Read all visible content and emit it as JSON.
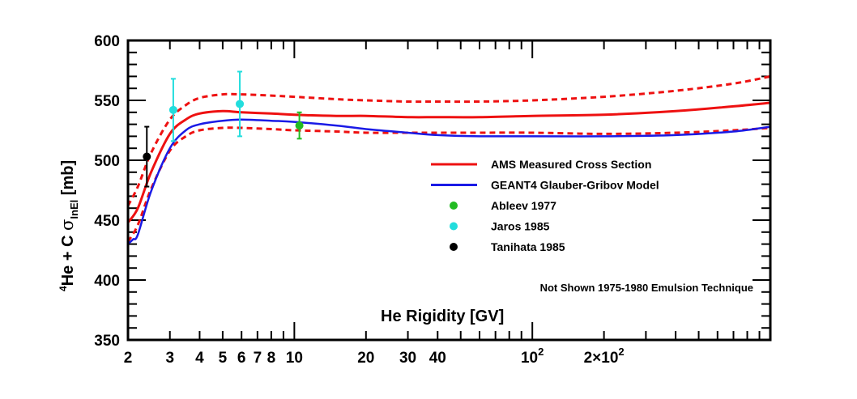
{
  "chart_data": {
    "type": "line",
    "xlabel": "He Rigidity [GV]",
    "ylabel": {
      "sup": "4",
      "main": "He + C  ",
      "sigma": "σ",
      "sub": "InEl",
      "unit": " [mb]"
    },
    "x_scale": "log",
    "xlim": [
      2,
      1000
    ],
    "ylim": [
      350,
      600
    ],
    "y_ticks": [
      350,
      400,
      450,
      500,
      550,
      600
    ],
    "x_tick_labels": [
      {
        "x": 2,
        "text": "2"
      },
      {
        "x": 3,
        "text": "3"
      },
      {
        "x": 4,
        "text": "4"
      },
      {
        "x": 5,
        "text": "5"
      },
      {
        "x": 6,
        "text": "6"
      },
      {
        "x": 7,
        "text": "7"
      },
      {
        "x": 8,
        "text": "8"
      },
      {
        "x": 10,
        "text": "10"
      },
      {
        "x": 20,
        "text": "20"
      },
      {
        "x": 30,
        "text": "30"
      },
      {
        "x": 40,
        "text": "40"
      },
      {
        "x": 100,
        "text": "10",
        "sup": "2"
      },
      {
        "x": 200,
        "text": "2×10",
        "sup": "2"
      }
    ],
    "series": [
      {
        "name": "AMS Measured Cross Section",
        "color": "#ee1111",
        "style": "solid",
        "x": [
          2.0,
          2.2,
          2.5,
          3.0,
          3.5,
          4.0,
          5.0,
          6.0,
          8.0,
          10,
          15,
          20,
          30,
          40,
          60,
          100,
          200,
          400,
          700,
          1000
        ],
        "y": [
          448,
          460,
          490,
          522,
          534,
          539,
          541,
          540,
          539,
          538,
          537,
          537,
          536,
          536,
          536,
          537,
          538,
          541,
          545,
          548
        ]
      },
      {
        "name": "AMS upper band",
        "color": "#ee1111",
        "style": "dashed",
        "x": [
          2.0,
          2.2,
          2.5,
          3.0,
          3.5,
          4.0,
          5.0,
          6.0,
          8.0,
          10,
          15,
          20,
          30,
          40,
          60,
          100,
          200,
          400,
          700,
          1000
        ],
        "y": [
          462,
          478,
          506,
          534,
          546,
          552,
          555,
          555,
          554,
          553,
          551,
          550,
          549,
          549,
          549,
          550,
          553,
          558,
          564,
          570
        ]
      },
      {
        "name": "AMS lower band",
        "color": "#ee1111",
        "style": "dashed",
        "x": [
          2.0,
          2.2,
          2.5,
          3.0,
          3.5,
          4.0,
          5.0,
          6.0,
          8.0,
          10,
          15,
          20,
          30,
          40,
          60,
          100,
          200,
          400,
          700,
          1000
        ],
        "y": [
          432,
          446,
          476,
          508,
          520,
          525,
          527,
          527,
          526,
          525,
          524,
          523,
          523,
          523,
          523,
          523,
          522,
          523,
          525,
          527
        ]
      },
      {
        "name": "GEANT4 Glauber-Gribov Model",
        "color": "#1a1ae6",
        "style": "solid",
        "x": [
          2.0,
          2.1,
          2.2,
          2.5,
          3.0,
          3.5,
          4.0,
          5.0,
          6.0,
          8.0,
          10,
          15,
          20,
          30,
          40,
          60,
          100,
          200,
          400,
          700,
          1000
        ],
        "y": [
          430,
          434,
          438,
          474,
          510,
          525,
          530,
          533,
          534,
          533,
          532,
          529,
          526,
          523,
          521,
          520,
          520,
          520,
          521,
          524,
          528
        ]
      }
    ],
    "points": [
      {
        "name": "Ableev 1977",
        "color": "#22bb22",
        "x": 10.5,
        "y": 529,
        "err": 11
      },
      {
        "name": "Jaros 1985",
        "color": "#22dddd",
        "x": 3.1,
        "y": 542,
        "err": 26
      },
      {
        "name": "Jaros 1985",
        "color": "#22dddd",
        "x": 5.9,
        "y": 547,
        "err": 27
      },
      {
        "name": "Tanihata 1985",
        "color": "#000000",
        "x": 2.4,
        "y": 503,
        "err": 25
      }
    ],
    "legend": {
      "placement": "center-right",
      "entries": [
        {
          "label": "AMS Measured Cross Section",
          "kind": "line",
          "color": "#ee1111"
        },
        {
          "label": "GEANT4 Glauber-Gribov Model",
          "kind": "line",
          "color": "#1a1ae6"
        },
        {
          "label": "Ableev 1977",
          "kind": "marker",
          "color": "#22bb22"
        },
        {
          "label": "Jaros 1985",
          "kind": "marker",
          "color": "#22dddd"
        },
        {
          "label": "Tanihata 1985",
          "kind": "marker",
          "color": "#000000"
        }
      ]
    },
    "annotation": "Not Shown 1975-1980 Emulsion Technique"
  }
}
